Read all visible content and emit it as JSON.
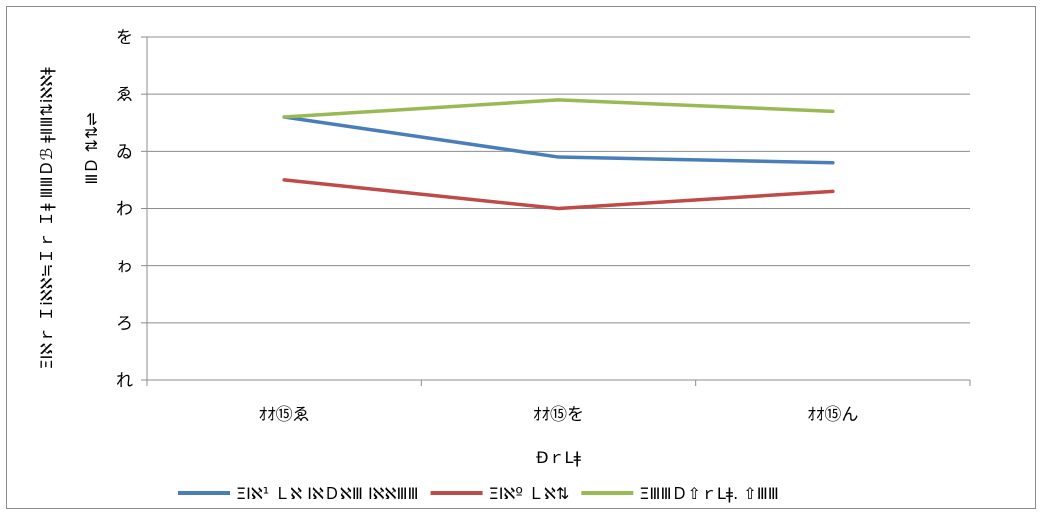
{
  "chart_data": {
    "type": "line",
    "categories": [
      "ｵｵ⑮ゑ",
      "ｵｵ⑮を",
      "ｵｵ⑮ん"
    ],
    "y_tick_labels": [
      "れ",
      "ろ",
      "ゎ",
      "わ",
      "ゐ",
      "ゑ",
      "を"
    ],
    "ylim": [
      0,
      6
    ],
    "grid": true,
    "legend_position": "bottom",
    "xlabel": "ÐｒLǂ",
    "ylabel_line1": "ΞΙℵｒ Ｉiℵℵ≒Ｉｒ Ｉǂ ⅢⅢＤℬ ǂⅡⅢ⇅iℵℵǂ",
    "ylabel_line2": "ⅢＤ ⇅⇅⇌",
    "series": [
      {
        "name": "ΞΙℵ¹ Ｌℵ ΙℵＤℵⅢ ΙℵℵⅢⅢ",
        "color": "#4a7ebb",
        "values": [
          4.6,
          3.9,
          3.8
        ]
      },
      {
        "name": "ΞΙℵº Ｌℵ⇅",
        "color": "#be4b48",
        "values": [
          3.5,
          3.0,
          3.3
        ]
      },
      {
        "name": "ΞⅢⅢＤ⇧ｒLǂ. ⇧ⅢⅢ",
        "color": "#98b954",
        "values": [
          4.6,
          4.9,
          4.7
        ]
      }
    ]
  }
}
